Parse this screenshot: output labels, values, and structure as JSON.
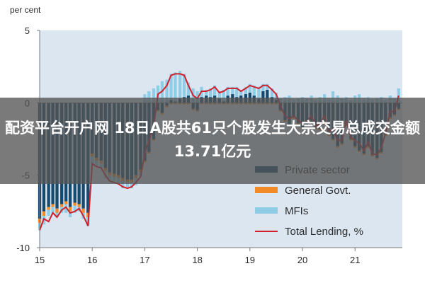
{
  "overlay": {
    "headline": "配资平台开户网 18日A股共61只个股发生大宗交易总成交金额13.71亿元"
  },
  "colors": {
    "private_sector": "#16496e",
    "general_govt": "#f28a28",
    "mfis": "#8fcde6",
    "total_lending": "#d21f2a",
    "plot_background": "#dce6f1",
    "axis": "#7a7a7a"
  },
  "chart_data": {
    "type": "bar",
    "stacked": true,
    "unit_label": "per cent",
    "ylim": [
      -10,
      5
    ],
    "yticks": [
      5,
      0,
      -5,
      -10
    ],
    "xlim": [
      15,
      21.9
    ],
    "xticks": [
      15,
      16,
      17,
      18,
      19,
      20,
      21
    ],
    "grid": false,
    "legend_position": "lower-right",
    "series": [
      {
        "name": "Private sector",
        "kind": "bar",
        "x": [
          15.0,
          15.08,
          15.17,
          15.25,
          15.33,
          15.42,
          15.5,
          15.58,
          15.67,
          15.75,
          15.83,
          15.92,
          16.0,
          16.08,
          16.17,
          16.25,
          16.33,
          16.42,
          16.5,
          16.58,
          16.67,
          16.75,
          16.83,
          16.92,
          17.0,
          17.08,
          17.17,
          17.25,
          17.33,
          17.42,
          17.5,
          17.58,
          17.67,
          17.75,
          17.83,
          17.92,
          18.0,
          18.08,
          18.17,
          18.25,
          18.33,
          18.42,
          18.5,
          18.58,
          18.67,
          18.75,
          18.83,
          18.92,
          19.0,
          19.08,
          19.17,
          19.25,
          19.33,
          19.42,
          19.5,
          19.58,
          19.67,
          19.75,
          19.83,
          19.92,
          20.0,
          20.08,
          20.17,
          20.25,
          20.33,
          20.42,
          20.5,
          20.58,
          20.67,
          20.75,
          20.83,
          20.92,
          21.0,
          21.08,
          21.17,
          21.25,
          21.33,
          21.42,
          21.5,
          21.58,
          21.67,
          21.75,
          21.83
        ],
        "values": [
          -8.0,
          -7.5,
          -7.2,
          -7.0,
          -7.3,
          -7.0,
          -6.8,
          -7.2,
          -6.9,
          -7.0,
          -7.3,
          -7.6,
          -3.5,
          -3.8,
          -4.0,
          -4.5,
          -4.8,
          -4.9,
          -5.0,
          -5.2,
          -5.3,
          -5.3,
          -5.0,
          -4.6,
          -4.0,
          -3.4,
          -2.5,
          -0.5,
          -0.7,
          -0.2,
          0.2,
          0.1,
          0.3,
          0.4,
          0.5,
          -0.4,
          -0.5,
          0.4,
          0.5,
          0.4,
          0.5,
          0.3,
          0.1,
          0.5,
          0.6,
          0.4,
          0.5,
          0.6,
          0.7,
          0.5,
          0.3,
          0.8,
          0.9,
          0.4,
          0.2,
          -0.5,
          -1.2,
          -1.5,
          -1.0,
          -1.4,
          -1.7,
          -1.5,
          -1.3,
          -1.7,
          -1.8,
          -1.4,
          -2.2,
          -2.5,
          -3.0,
          -2.8,
          -1.5,
          -2.5,
          -3.0,
          -3.3,
          -3.5,
          -3.0,
          -3.6,
          -3.8,
          -3.4,
          -2.2,
          -1.0,
          -0.8,
          -0.4
        ]
      },
      {
        "name": "General Govt.",
        "kind": "bar",
        "x": [
          15.0,
          15.08,
          15.17,
          15.25,
          15.33,
          15.42,
          15.5,
          15.58,
          15.67,
          15.75,
          15.83,
          15.92,
          16.0,
          16.08,
          16.17,
          16.25,
          16.33,
          16.42,
          16.5,
          16.58,
          16.67,
          16.75,
          16.83,
          16.92,
          17.0,
          17.08,
          17.17,
          17.25,
          17.33,
          17.42,
          17.5,
          17.58,
          17.67,
          17.75,
          17.83,
          17.92,
          18.0,
          18.08,
          18.17,
          18.25,
          18.33,
          18.42,
          18.5,
          18.58,
          18.67,
          18.75,
          18.83,
          18.92,
          19.0,
          19.08,
          19.17,
          19.25,
          19.33,
          19.42,
          19.5,
          19.58,
          19.67,
          19.75,
          19.83,
          19.92,
          20.0,
          20.08,
          20.17,
          20.25,
          20.33,
          20.42,
          20.5,
          20.58,
          20.67,
          20.75,
          20.83,
          20.92,
          21.0,
          21.08,
          21.17,
          21.25,
          21.33,
          21.42,
          21.5,
          21.58,
          21.67,
          21.75,
          21.83
        ],
        "values": [
          -0.3,
          -0.3,
          -0.2,
          -0.2,
          -0.3,
          -0.2,
          -0.2,
          -0.3,
          -0.2,
          -0.2,
          -0.3,
          -0.3,
          -0.2,
          -0.2,
          -0.2,
          -0.2,
          -0.2,
          -0.2,
          -0.2,
          -0.2,
          -0.2,
          -0.2,
          -0.2,
          -0.2,
          -0.1,
          -0.1,
          -0.1,
          -0.1,
          -0.1,
          -0.1,
          -0.1,
          -0.1,
          -0.1,
          -0.1,
          -0.1,
          -0.1,
          -0.1,
          -0.1,
          -0.1,
          -0.1,
          -0.1,
          -0.1,
          -0.1,
          -0.1,
          -0.1,
          -0.1,
          -0.1,
          -0.1,
          -0.1,
          -0.1,
          -0.1,
          -0.1,
          -0.1,
          -0.1,
          -0.1,
          -0.1,
          -0.1,
          -0.1,
          -0.1,
          -0.1,
          -0.1,
          -0.1,
          -0.1,
          -0.1,
          -0.1,
          -0.1,
          -0.1,
          -0.1,
          -0.1,
          -0.1,
          -0.1,
          -0.1,
          -0.1,
          -0.1,
          -0.1,
          -0.1,
          -0.1,
          -0.1,
          -0.1,
          -0.1,
          -0.1,
          -0.1,
          -0.1
        ]
      },
      {
        "name": "MFIs",
        "kind": "bar",
        "x": [
          15.0,
          15.08,
          15.17,
          15.25,
          15.33,
          15.42,
          15.5,
          15.58,
          15.67,
          15.75,
          15.83,
          15.92,
          16.0,
          16.08,
          16.17,
          16.25,
          16.33,
          16.42,
          16.5,
          16.58,
          16.67,
          16.75,
          16.83,
          16.92,
          17.0,
          17.08,
          17.17,
          17.25,
          17.33,
          17.42,
          17.5,
          17.58,
          17.67,
          17.75,
          17.83,
          17.92,
          18.0,
          18.08,
          18.17,
          18.25,
          18.33,
          18.42,
          18.5,
          18.58,
          18.67,
          18.75,
          18.83,
          18.92,
          19.0,
          19.08,
          19.17,
          19.25,
          19.33,
          19.42,
          19.5,
          19.58,
          19.67,
          19.75,
          19.83,
          19.92,
          20.0,
          20.08,
          20.17,
          20.25,
          20.33,
          20.42,
          20.5,
          20.58,
          20.67,
          20.75,
          20.83,
          20.92,
          21.0,
          21.08,
          21.17,
          21.25,
          21.33,
          21.42,
          21.5,
          21.58,
          21.67,
          21.75,
          21.83
        ],
        "values": [
          -0.5,
          -0.6,
          -0.4,
          -0.5,
          -0.3,
          -0.4,
          -0.6,
          -0.4,
          -0.5,
          -0.3,
          -0.4,
          -0.6,
          -0.5,
          -0.4,
          -0.3,
          -0.5,
          -0.4,
          -0.3,
          -0.4,
          -0.5,
          -0.3,
          -0.4,
          -0.5,
          -0.3,
          0.6,
          0.8,
          1.0,
          1.2,
          1.5,
          1.6,
          1.8,
          2.0,
          1.9,
          1.6,
          0.9,
          1.0,
          0.8,
          0.7,
          0.4,
          0.6,
          0.7,
          0.5,
          0.8,
          0.6,
          0.5,
          0.7,
          0.4,
          0.5,
          0.6,
          0.7,
          0.8,
          0.5,
          0.4,
          0.6,
          0.5,
          0.3,
          0.4,
          0.5,
          0.2,
          0.3,
          0.4,
          0.3,
          0.5,
          0.2,
          0.4,
          0.6,
          0.3,
          0.8,
          0.5,
          0.3,
          0.4,
          0.2,
          0.5,
          0.6,
          0.3,
          0.4,
          0.2,
          0.3,
          0.4,
          0.2,
          0.5,
          0.3,
          1.0
        ]
      },
      {
        "name": "Total Lending, %",
        "kind": "line",
        "x": [
          15.0,
          15.08,
          15.17,
          15.25,
          15.33,
          15.42,
          15.5,
          15.58,
          15.67,
          15.75,
          15.83,
          15.92,
          16.0,
          16.08,
          16.17,
          16.25,
          16.33,
          16.42,
          16.5,
          16.58,
          16.67,
          16.75,
          16.83,
          16.92,
          17.0,
          17.08,
          17.17,
          17.25,
          17.33,
          17.42,
          17.5,
          17.58,
          17.67,
          17.75,
          17.83,
          17.92,
          18.0,
          18.08,
          18.17,
          18.25,
          18.33,
          18.42,
          18.5,
          18.58,
          18.67,
          18.75,
          18.83,
          18.92,
          19.0,
          19.08,
          19.17,
          19.25,
          19.33,
          19.42,
          19.5,
          19.58,
          19.67,
          19.75,
          19.83,
          19.92,
          20.0,
          20.08,
          20.17,
          20.25,
          20.33,
          20.42,
          20.5,
          20.58,
          20.67,
          20.75,
          20.83,
          20.92,
          21.0,
          21.08,
          21.17,
          21.25,
          21.33,
          21.42,
          21.5,
          21.58,
          21.67,
          21.75,
          21.83
        ],
        "values": [
          -8.8,
          -8.0,
          -8.2,
          -7.6,
          -7.9,
          -7.4,
          -7.2,
          -7.6,
          -7.5,
          -7.3,
          -7.8,
          -8.5,
          -4.2,
          -4.4,
          -4.5,
          -5.0,
          -5.4,
          -5.5,
          -5.6,
          -5.8,
          -5.9,
          -5.8,
          -5.5,
          -5.1,
          -3.5,
          -2.6,
          -1.6,
          0.6,
          0.8,
          1.2,
          1.9,
          2.0,
          2.0,
          1.9,
          1.2,
          0.5,
          0.3,
          0.8,
          0.8,
          0.9,
          1.1,
          0.7,
          0.8,
          1.0,
          1.0,
          1.0,
          0.8,
          1.0,
          1.2,
          1.1,
          1.0,
          1.2,
          1.2,
          0.9,
          0.6,
          -0.2,
          -0.9,
          -1.1,
          -0.9,
          -1.2,
          -1.4,
          -1.3,
          -0.9,
          -1.6,
          -1.5,
          -0.9,
          -2.0,
          -1.8,
          -2.6,
          -2.6,
          -1.2,
          -2.4,
          -2.6,
          -2.8,
          -3.3,
          -2.7,
          -3.5,
          -3.6,
          -3.1,
          -2.1,
          -0.6,
          -0.6,
          0.5
        ]
      }
    ]
  }
}
